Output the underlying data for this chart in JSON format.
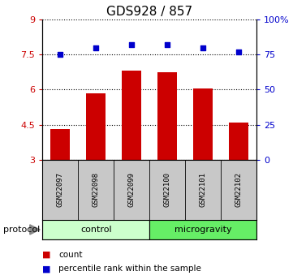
{
  "title": "GDS928 / 857",
  "samples": [
    "GSM22097",
    "GSM22098",
    "GSM22099",
    "GSM22100",
    "GSM22101",
    "GSM22102"
  ],
  "bar_heights": [
    4.3,
    5.85,
    6.8,
    6.75,
    6.05,
    4.6
  ],
  "percentile_values": [
    75.0,
    80.0,
    82.0,
    82.0,
    80.0,
    77.0
  ],
  "bar_color": "#cc0000",
  "percentile_color": "#0000cc",
  "ylim_left": [
    3,
    9
  ],
  "ylim_right": [
    0,
    100
  ],
  "yticks_left": [
    3,
    4.5,
    6,
    7.5,
    9
  ],
  "ytick_labels_left": [
    "3",
    "4.5",
    "6",
    "7.5",
    "9"
  ],
  "yticks_right": [
    0,
    25,
    50,
    75,
    100
  ],
  "ytick_labels_right": [
    "0",
    "25",
    "50",
    "75",
    "100%"
  ],
  "groups": [
    {
      "label": "control",
      "span": [
        0,
        2
      ],
      "color": "#ccffcc"
    },
    {
      "label": "microgravity",
      "span": [
        3,
        5
      ],
      "color": "#66ee66"
    }
  ],
  "protocol_label": "protocol",
  "legend_bar_label": "count",
  "legend_dot_label": "percentile rank within the sample",
  "bar_width": 0.55,
  "dotted_gridlines": [
    3,
    4.5,
    6,
    7.5,
    9
  ],
  "background_color": "#ffffff",
  "plot_bg": "#ffffff",
  "label_area_bg": "#c8c8c8",
  "title_fontsize": 11,
  "axis_label_color_left": "#cc0000",
  "axis_label_color_right": "#0000cc"
}
